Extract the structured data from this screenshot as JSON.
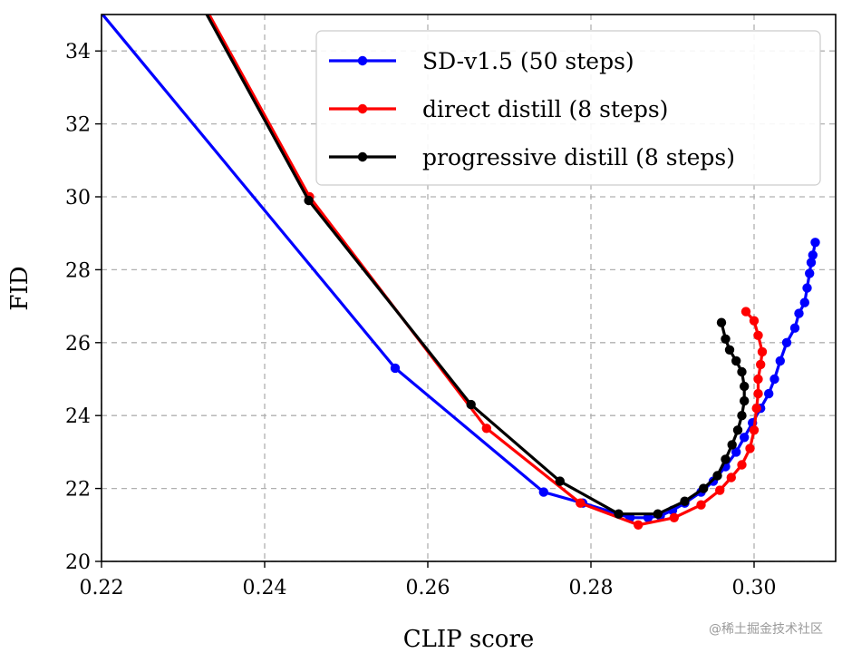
{
  "chart_data": {
    "type": "line",
    "xlabel": "CLIP score",
    "ylabel": "FID",
    "xlim": [
      0.22,
      0.31
    ],
    "ylim": [
      20,
      35
    ],
    "xticks": [
      "0.22",
      "0.24",
      "0.26",
      "0.28",
      "0.30"
    ],
    "xtick_values": [
      0.22,
      0.24,
      0.26,
      0.28,
      0.3
    ],
    "yticks": [
      "20",
      "22",
      "24",
      "26",
      "28",
      "30",
      "32",
      "34"
    ],
    "ytick_values": [
      20,
      22,
      24,
      26,
      28,
      30,
      32,
      34
    ],
    "grid": true,
    "legend_position": "top-right",
    "series": [
      {
        "name": "SD-v1.5 (50 steps)",
        "color": "#0000ff",
        "points": [
          [
            0.212,
            37.2
          ],
          [
            0.256,
            25.3
          ],
          [
            0.2742,
            21.9
          ],
          [
            0.279,
            21.6
          ],
          [
            0.2848,
            21.2
          ],
          [
            0.287,
            21.2
          ],
          [
            0.2885,
            21.25
          ],
          [
            0.29,
            21.4
          ],
          [
            0.2915,
            21.6
          ],
          [
            0.2935,
            21.9
          ],
          [
            0.295,
            22.2
          ],
          [
            0.2965,
            22.6
          ],
          [
            0.2978,
            23.0
          ],
          [
            0.2988,
            23.4
          ],
          [
            0.2998,
            23.8
          ],
          [
            0.3008,
            24.2
          ],
          [
            0.3018,
            24.6
          ],
          [
            0.3025,
            25.0
          ],
          [
            0.3032,
            25.5
          ],
          [
            0.304,
            26.0
          ],
          [
            0.305,
            26.4
          ],
          [
            0.3055,
            26.8
          ],
          [
            0.3062,
            27.1
          ],
          [
            0.3065,
            27.5
          ],
          [
            0.3068,
            27.9
          ],
          [
            0.307,
            28.2
          ],
          [
            0.3072,
            28.4
          ],
          [
            0.3075,
            28.75
          ]
        ],
        "marker_skip_first": true
      },
      {
        "name": "direct distill (8 steps)",
        "color": "#ff0000",
        "points": [
          [
            0.2295,
            36.5
          ],
          [
            0.2455,
            30.0
          ],
          [
            0.2672,
            23.65
          ],
          [
            0.2787,
            21.6
          ],
          [
            0.2858,
            21.0
          ],
          [
            0.2902,
            21.2
          ],
          [
            0.2935,
            21.55
          ],
          [
            0.2958,
            21.95
          ],
          [
            0.2972,
            22.3
          ],
          [
            0.2985,
            22.65
          ],
          [
            0.2995,
            23.1
          ],
          [
            0.3,
            23.6
          ],
          [
            0.3003,
            24.2
          ],
          [
            0.3005,
            24.6
          ],
          [
            0.3005,
            25.0
          ],
          [
            0.3008,
            25.4
          ],
          [
            0.301,
            25.75
          ],
          [
            0.3005,
            26.2
          ],
          [
            0.3,
            26.6
          ],
          [
            0.299,
            26.85
          ]
        ],
        "marker_skip_first": true
      },
      {
        "name": "progressive distill (8 steps)",
        "color": "#000000",
        "points": [
          [
            0.2285,
            36.8
          ],
          [
            0.2454,
            29.9
          ],
          [
            0.2653,
            24.3
          ],
          [
            0.2762,
            22.2
          ],
          [
            0.2834,
            21.3
          ],
          [
            0.2882,
            21.3
          ],
          [
            0.2915,
            21.65
          ],
          [
            0.2938,
            22.0
          ],
          [
            0.2955,
            22.35
          ],
          [
            0.2965,
            22.8
          ],
          [
            0.2973,
            23.2
          ],
          [
            0.298,
            23.6
          ],
          [
            0.2985,
            24.0
          ],
          [
            0.2988,
            24.4
          ],
          [
            0.2988,
            24.8
          ],
          [
            0.2985,
            25.2
          ],
          [
            0.2978,
            25.5
          ],
          [
            0.297,
            25.8
          ],
          [
            0.2965,
            26.1
          ],
          [
            0.296,
            26.55
          ]
        ],
        "marker_skip_first": true
      }
    ]
  },
  "watermark": "@稀土掘金技术社区"
}
